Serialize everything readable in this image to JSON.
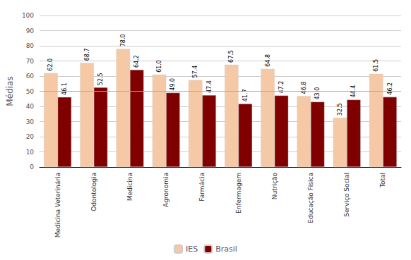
{
  "chart_data": {
    "type": "bar",
    "categories": [
      "Medicina Veterinária",
      "Odontologia",
      "Medicina",
      "Agronomia",
      "Farmácia",
      "Enfermagem",
      "Nutrição",
      "Educação Física",
      "Serviço Social",
      "Total"
    ],
    "series": [
      {
        "name": "IES",
        "color": "#F5C9A5",
        "values": [
          62.0,
          68.7,
          78.0,
          61.0,
          57.4,
          67.5,
          64.8,
          46.8,
          32.5,
          61.5
        ],
        "value_labels": [
          "62.0",
          "68.7",
          "78.0",
          "61.0",
          "57.4",
          "67.5",
          "64.8",
          "46.8",
          "32.5",
          "61.5"
        ]
      },
      {
        "name": "Brasil",
        "color": "#800000",
        "values": [
          46.1,
          52.5,
          64.2,
          49.0,
          47.4,
          41.7,
          47.2,
          43.0,
          44.4,
          46.2
        ],
        "value_labels": [
          "46.1",
          "52.5",
          "64.2",
          "49.0",
          "47.4",
          "41.7",
          "47.2",
          "43.0",
          "44.4",
          "46.2"
        ]
      }
    ],
    "ylabel": "Médias",
    "ylim": [
      0,
      100
    ],
    "yticks": [
      0,
      10,
      20,
      30,
      40,
      50,
      60,
      70,
      80,
      90,
      100
    ],
    "grid": true,
    "data_labels": true,
    "legend": "bottom",
    "hline": {
      "value": 50,
      "color": "#aaaaaa"
    }
  }
}
